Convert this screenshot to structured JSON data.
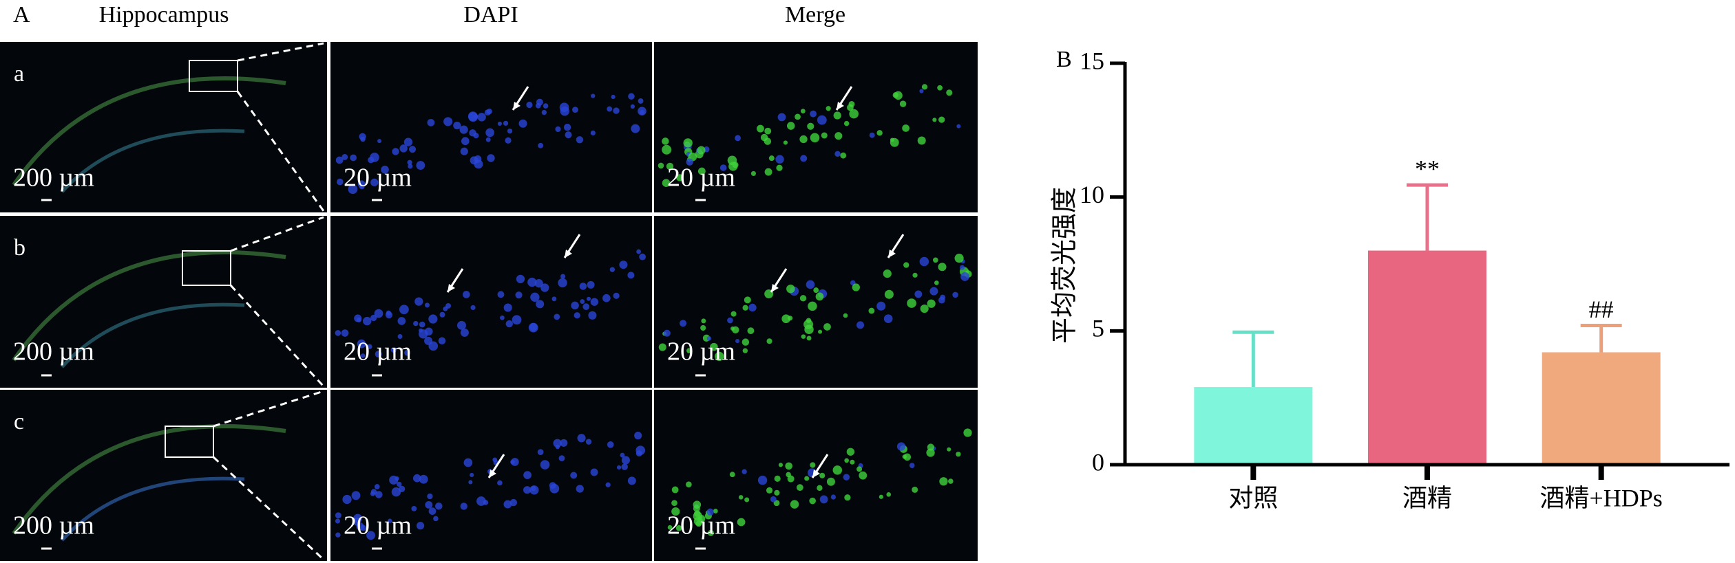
{
  "panel_a": {
    "label": "A",
    "columns": [
      "Hippocampus",
      "DAPI",
      "Merge"
    ],
    "rows": [
      "a",
      "b",
      "c"
    ],
    "scale_labels": [
      "200 µm",
      "20 µm",
      "20 µm"
    ]
  },
  "chart_data": {
    "type": "bar",
    "panel_label": "B",
    "y_label": "平均荧光强度",
    "categories": [
      "对照",
      "酒精",
      "酒精+HDPs"
    ],
    "values": [
      2.9,
      8.0,
      4.2
    ],
    "errors": [
      2.05,
      2.45,
      1.0
    ],
    "annotations": [
      null,
      "**",
      "##"
    ],
    "colors": [
      "#7ff5dc",
      "#e8667f",
      "#f0a97c"
    ],
    "error_colors": [
      "#66dfc6",
      "#e8708a",
      "#eba07a"
    ],
    "ylim": [
      0,
      15
    ],
    "yticks": [
      0,
      5,
      10,
      15
    ]
  }
}
